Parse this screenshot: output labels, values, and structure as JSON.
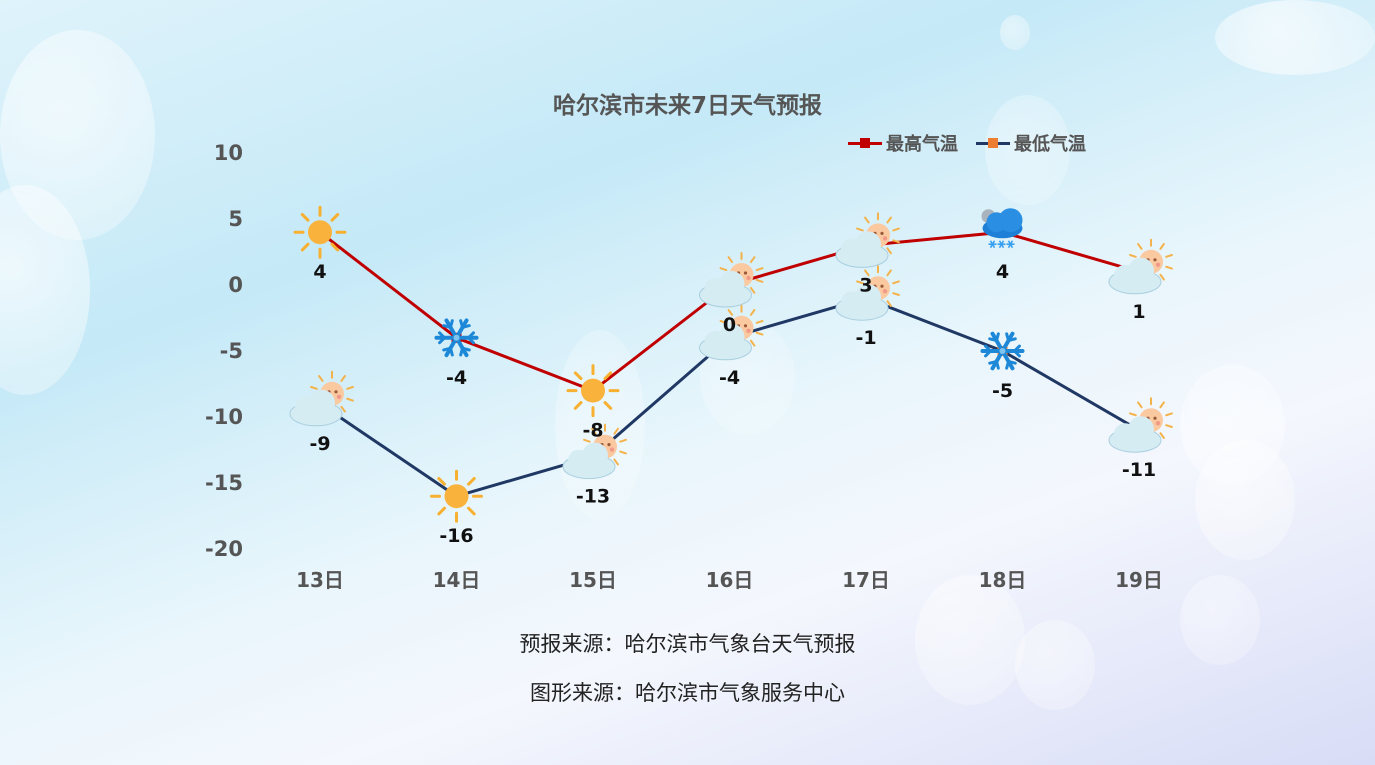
{
  "page": {
    "title": "哈尔滨市未来7日天气预报",
    "forecast_source": "预报来源：哈尔滨市气象台天气预报",
    "graphic_source": "图形来源：哈尔滨市气象服务中心"
  },
  "chart_data": {
    "type": "line",
    "title": "哈尔滨市未来7日天气预报",
    "categories": [
      "13日",
      "14日",
      "15日",
      "16日",
      "17日",
      "18日",
      "19日"
    ],
    "ylim": [
      -20,
      10
    ],
    "yticks": [
      "10",
      "5",
      "0",
      "-5",
      "-10",
      "-15",
      "-20"
    ],
    "grid": false,
    "legend_position": "top-right",
    "series": [
      {
        "name": "最高气温",
        "color": "#c00000",
        "values": [
          4,
          -4,
          -8,
          0,
          3,
          4,
          1
        ],
        "labels": [
          "4",
          "-4",
          "-8",
          "0",
          "3",
          "4",
          "1"
        ],
        "icons": [
          "sun-icon",
          "snowflake-icon",
          "sun-icon",
          "cloudy-sun-icon",
          "cloudy-sun-icon",
          "snow-cloud-icon",
          "cloudy-sun-icon"
        ]
      },
      {
        "name": "最低气温",
        "color": "#203864",
        "marker_color": "#ed7d31",
        "values": [
          -9,
          -16,
          -13,
          -4,
          -1,
          -5,
          -11
        ],
        "labels": [
          "-9",
          "-16",
          "-13",
          "-4",
          "-1",
          "-5",
          "-11"
        ],
        "icons": [
          "cloudy-sun-icon",
          "sun-icon",
          "cloudy-sun-icon",
          "cloudy-sun-icon",
          "cloudy-sun-icon",
          "snowflake-icon",
          "cloudy-sun-icon"
        ]
      }
    ]
  }
}
